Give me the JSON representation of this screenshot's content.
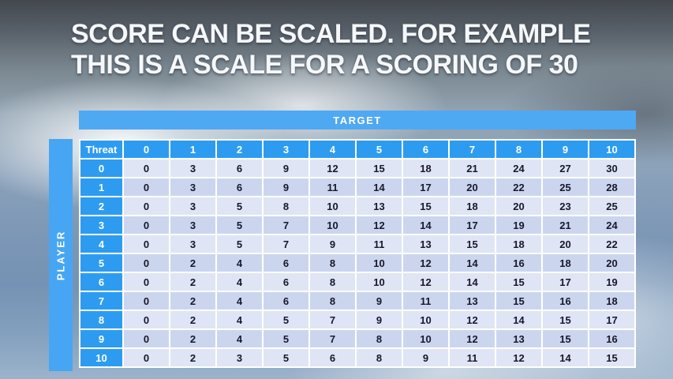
{
  "title": {
    "line1": "SCORE CAN BE SCALED. FOR EXAMPLE",
    "line2": "THIS IS A SCALE FOR A SCORING OF 30"
  },
  "chart_data": {
    "type": "table",
    "title": "Score scaling table for a scoring of 30",
    "target_label": "TARGET",
    "player_label": "PLAYER",
    "corner_label": "Threat",
    "col_headers": [
      "0",
      "1",
      "2",
      "3",
      "4",
      "5",
      "6",
      "7",
      "8",
      "9",
      "10"
    ],
    "rows": [
      {
        "header": "0",
        "values": [
          0,
          3,
          6,
          9,
          12,
          15,
          18,
          21,
          24,
          27,
          30
        ]
      },
      {
        "header": "1",
        "values": [
          0,
          3,
          6,
          9,
          11,
          14,
          17,
          20,
          22,
          25,
          28
        ]
      },
      {
        "header": "2",
        "values": [
          0,
          3,
          5,
          8,
          10,
          13,
          15,
          18,
          20,
          23,
          25
        ]
      },
      {
        "header": "3",
        "values": [
          0,
          3,
          5,
          7,
          10,
          12,
          14,
          17,
          19,
          21,
          24
        ]
      },
      {
        "header": "4",
        "values": [
          0,
          3,
          5,
          7,
          9,
          11,
          13,
          15,
          18,
          20,
          22
        ]
      },
      {
        "header": "5",
        "values": [
          0,
          2,
          4,
          6,
          8,
          10,
          12,
          14,
          16,
          18,
          20
        ]
      },
      {
        "header": "6",
        "values": [
          0,
          2,
          4,
          6,
          8,
          10,
          12,
          14,
          15,
          17,
          19
        ]
      },
      {
        "header": "7",
        "values": [
          0,
          2,
          4,
          6,
          8,
          9,
          11,
          13,
          15,
          16,
          18
        ]
      },
      {
        "header": "8",
        "values": [
          0,
          2,
          4,
          5,
          7,
          9,
          10,
          12,
          14,
          15,
          17
        ]
      },
      {
        "header": "9",
        "values": [
          0,
          2,
          4,
          5,
          7,
          8,
          10,
          12,
          13,
          15,
          16
        ]
      },
      {
        "header": "10",
        "values": [
          0,
          2,
          3,
          5,
          6,
          8,
          9,
          11,
          12,
          14,
          15
        ]
      }
    ]
  },
  "colors": {
    "header_blue": "#2d9cf0",
    "bar_blue": "#4fa8f2",
    "player_blue": "#47a6f3",
    "band_light": "#dfe5f4",
    "band_dark": "#cbd6ee",
    "title_white": "#f5f7f9"
  }
}
